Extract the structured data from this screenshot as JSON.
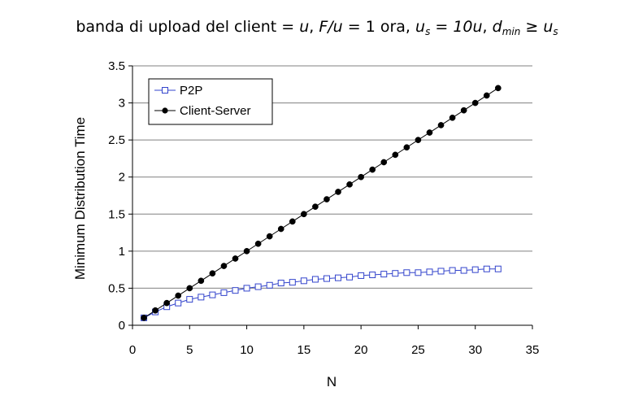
{
  "title": {
    "prefix": "banda di upload del client = ",
    "u1": "u",
    "sep1": ",  ",
    "fu": "F/u",
    "eq1": " = 1 ora,  ",
    "us_base": "u",
    "us_sub": "s",
    "eq2": " = ",
    "ten_u": "10u",
    "sep2": ",  ",
    "dmin_base": "d",
    "dmin_sub": "min",
    "ge": " ≥ ",
    "us2_base": "u",
    "us2_sub": "s"
  },
  "chart_data": {
    "type": "line",
    "xlabel": "N",
    "ylabel": "Minimum Distribution Time",
    "xlim": [
      0,
      35
    ],
    "ylim": [
      0,
      3.5
    ],
    "xticks": [
      0,
      5,
      10,
      15,
      20,
      25,
      30,
      35
    ],
    "yticks": [
      0,
      0.5,
      1,
      1.5,
      2,
      2.5,
      3,
      3.5
    ],
    "ytick_labels": [
      "0",
      "0.5",
      "1",
      "1.5",
      "2",
      "2.5",
      "3",
      "3.5"
    ],
    "grid": "horizontal",
    "legend_position": "top-left",
    "x": [
      1,
      2,
      3,
      4,
      5,
      6,
      7,
      8,
      9,
      10,
      11,
      12,
      13,
      14,
      15,
      16,
      17,
      18,
      19,
      20,
      21,
      22,
      23,
      24,
      25,
      26,
      27,
      28,
      29,
      30,
      31,
      32
    ],
    "series": [
      {
        "name": "P2P",
        "marker": "open-square",
        "color": "#3344cc",
        "values": [
          0.1,
          0.18,
          0.25,
          0.3,
          0.35,
          0.38,
          0.41,
          0.44,
          0.47,
          0.5,
          0.52,
          0.54,
          0.57,
          0.58,
          0.6,
          0.62,
          0.63,
          0.64,
          0.65,
          0.67,
          0.68,
          0.69,
          0.7,
          0.71,
          0.71,
          0.72,
          0.73,
          0.74,
          0.74,
          0.75,
          0.76,
          0.76
        ]
      },
      {
        "name": "Client-Server",
        "marker": "filled-circle",
        "color": "#000000",
        "values": [
          0.1,
          0.2,
          0.3,
          0.4,
          0.5,
          0.6,
          0.7,
          0.8,
          0.9,
          1.0,
          1.1,
          1.2,
          1.3,
          1.4,
          1.5,
          1.6,
          1.7,
          1.8,
          1.9,
          2.0,
          2.1,
          2.2,
          2.3,
          2.4,
          2.5,
          2.6,
          2.7,
          2.8,
          2.9,
          3.0,
          3.1,
          3.2
        ]
      }
    ]
  }
}
